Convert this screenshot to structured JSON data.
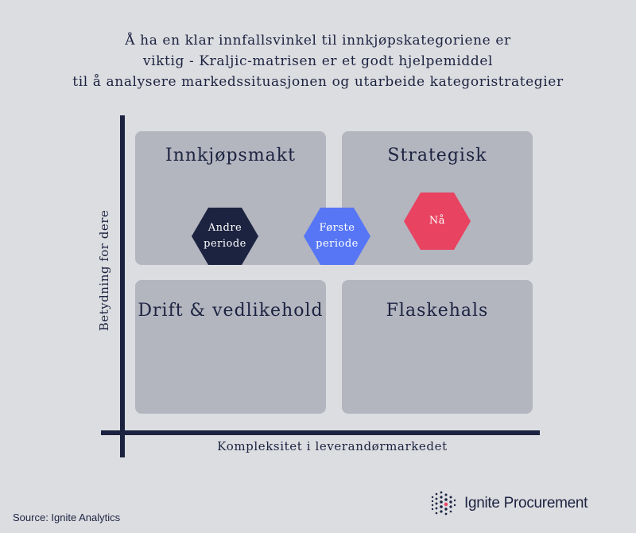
{
  "title": {
    "line1": "Å ha en klar innfallsvinkel til innkjøpskategoriene er",
    "line2": "viktig - Kraljic-matrisen er et godt hjelpemiddel",
    "line3": "til å analysere markedssituasjonen og utarbeide kategoristrategier"
  },
  "axes": {
    "y_label": "Betydning for dere",
    "x_label": "Kompleksitet i leverandørmarkedet"
  },
  "quadrants": {
    "top_left": "Innkjøpsmakt",
    "top_right": "Strategisk",
    "bottom_left": "Drift & vedlikehold",
    "bottom_right": "Flaskehals"
  },
  "markers": {
    "andre": {
      "line1": "Andre",
      "line2": "periode",
      "color": "#1c2340"
    },
    "forste": {
      "line1": "Første",
      "line2": "periode",
      "color": "#5676f6"
    },
    "na": {
      "label": "Nå",
      "color": "#e84360"
    }
  },
  "colors": {
    "background": "#dcdde1",
    "quadrant": "#b3b5bf",
    "navy": "#1c2340"
  },
  "footer": {
    "source": "Source: Ignite Analytics",
    "logo_text": "Ignite Procurement",
    "logo_icon": "dot-grid-logo-icon"
  }
}
